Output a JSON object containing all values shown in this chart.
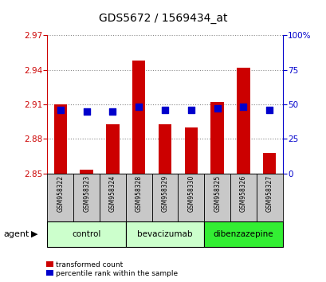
{
  "title": "GDS5672 / 1569434_at",
  "samples": [
    "GSM958322",
    "GSM958323",
    "GSM958324",
    "GSM958328",
    "GSM958329",
    "GSM958330",
    "GSM958325",
    "GSM958326",
    "GSM958327"
  ],
  "transformed_count": [
    2.91,
    2.853,
    2.893,
    2.948,
    2.893,
    2.89,
    2.912,
    2.942,
    2.868
  ],
  "percentile_rank": [
    46,
    45,
    45,
    48,
    46,
    46,
    47,
    48,
    46
  ],
  "ylim_left": [
    2.85,
    2.97
  ],
  "ylim_right": [
    0,
    100
  ],
  "yticks_left": [
    2.85,
    2.88,
    2.91,
    2.94,
    2.97
  ],
  "yticks_right": [
    0,
    25,
    50,
    75,
    100
  ],
  "bar_color": "#cc0000",
  "dot_color": "#0000cc",
  "groups": [
    {
      "label": "control",
      "indices": [
        0,
        1,
        2
      ],
      "color": "#ccffcc"
    },
    {
      "label": "bevacizumab",
      "indices": [
        3,
        4,
        5
      ],
      "color": "#ccffcc"
    },
    {
      "label": "dibenzazepine",
      "indices": [
        6,
        7,
        8
      ],
      "color": "#33ee33"
    }
  ],
  "group_colors": [
    "#ccffcc",
    "#ccffcc",
    "#33ee33"
  ],
  "tick_bg_color": "#c8c8c8",
  "left_axis_color": "#cc0000",
  "right_axis_color": "#0000cc",
  "bar_width": 0.5,
  "dot_size": 28,
  "grid_color": "#888888",
  "fig_bg": "#ffffff"
}
